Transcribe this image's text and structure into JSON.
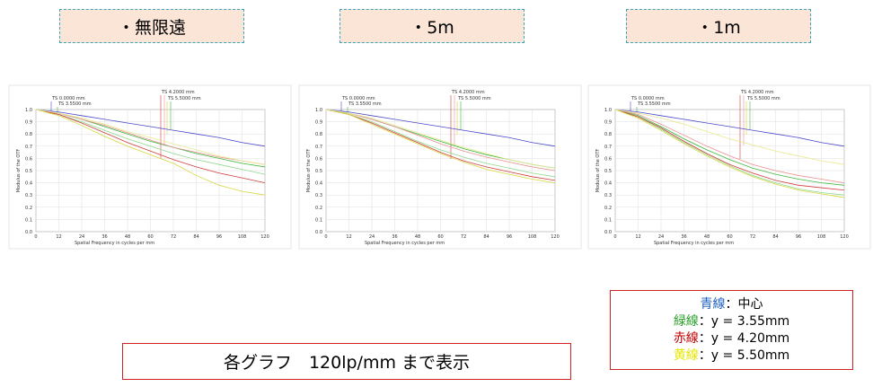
{
  "chart_data": [
    {
      "type": "line",
      "title": "・無限遠",
      "x_label": "Spatial Frequency in cycles per mm",
      "y_label": "Modulus of the OTF",
      "annotations": [
        "TS 0.0000 mm",
        "TS 3.5500 mm",
        "TS 4.2000 mm",
        "TS 5.5000 mm"
      ],
      "x": [
        0,
        12,
        24,
        36,
        48,
        60,
        72,
        84,
        96,
        108,
        120
      ],
      "xlim": [
        0,
        120
      ],
      "xticks": [
        0,
        12,
        24,
        36,
        48,
        60,
        72,
        84,
        96,
        108,
        120
      ],
      "ylim": [
        0,
        1
      ],
      "yticks": [
        {
          "value": 0,
          "label": "0.0"
        },
        {
          "value": 0.1,
          "label": "0.1"
        },
        {
          "value": 0.2,
          "label": "0.2"
        },
        {
          "value": 0.3,
          "label": "0.3"
        },
        {
          "value": 0.4,
          "label": "0.4"
        },
        {
          "value": 0.5,
          "label": "0.5"
        },
        {
          "value": 0.6,
          "label": "0.6"
        },
        {
          "value": 0.7,
          "label": "0.7"
        },
        {
          "value": 0.8,
          "label": "0.8"
        },
        {
          "value": 0.9,
          "label": "0.9"
        },
        {
          "value": 1,
          "label": "1.0"
        }
      ],
      "grid": true,
      "series": [
        {
          "color": "#4a4acb",
          "values": [
            1,
            0.98,
            0.95,
            0.92,
            0.89,
            0.86,
            0.83,
            0.8,
            0.77,
            0.73,
            0.7
          ]
        },
        {
          "color": "#3cb83c",
          "values": [
            1,
            0.97,
            0.92,
            0.86,
            0.8,
            0.74,
            0.69,
            0.64,
            0.6,
            0.56,
            0.53
          ]
        },
        {
          "color": "#8fd88f",
          "values": [
            1,
            0.96,
            0.9,
            0.83,
            0.76,
            0.7,
            0.64,
            0.59,
            0.55,
            0.51,
            0.47
          ]
        },
        {
          "color": "#d03c3c",
          "values": [
            1,
            0.96,
            0.89,
            0.81,
            0.73,
            0.66,
            0.59,
            0.53,
            0.48,
            0.44,
            0.4
          ]
        },
        {
          "color": "#e89090",
          "values": [
            1,
            0.97,
            0.92,
            0.87,
            0.81,
            0.75,
            0.69,
            0.65,
            0.61,
            0.58,
            0.55
          ]
        },
        {
          "color": "#d6d640",
          "values": [
            1,
            0.95,
            0.87,
            0.78,
            0.7,
            0.63,
            0.56,
            0.46,
            0.38,
            0.33,
            0.3
          ]
        },
        {
          "color": "#e8e890",
          "values": [
            1,
            0.97,
            0.93,
            0.88,
            0.82,
            0.77,
            0.72,
            0.67,
            0.62,
            0.58,
            0.55
          ]
        }
      ]
    },
    {
      "type": "line",
      "title": "・5m",
      "x_label": "Spatial Frequency in cycles per mm",
      "y_label": "Modulus of the OTF",
      "annotations": [
        "TS 0.0000 mm",
        "TS 3.5500 mm",
        "TS 4.2000 mm",
        "TS 5.5000 mm"
      ],
      "x": [
        0,
        12,
        24,
        36,
        48,
        60,
        72,
        84,
        96,
        108,
        120
      ],
      "xlim": [
        0,
        120
      ],
      "xticks": [
        0,
        12,
        24,
        36,
        48,
        60,
        72,
        84,
        96,
        108,
        120
      ],
      "ylim": [
        0,
        1
      ],
      "yticks": [
        {
          "value": 0,
          "label": "0.0"
        },
        {
          "value": 0.1,
          "label": "0.1"
        },
        {
          "value": 0.2,
          "label": "0.2"
        },
        {
          "value": 0.3,
          "label": "0.3"
        },
        {
          "value": 0.4,
          "label": "0.4"
        },
        {
          "value": 0.5,
          "label": "0.5"
        },
        {
          "value": 0.6,
          "label": "0.6"
        },
        {
          "value": 0.7,
          "label": "0.7"
        },
        {
          "value": 0.8,
          "label": "0.8"
        },
        {
          "value": 0.9,
          "label": "0.9"
        },
        {
          "value": 1,
          "label": "1.0"
        }
      ],
      "grid": true,
      "series": [
        {
          "color": "#4a4acb",
          "values": [
            1,
            0.98,
            0.95,
            0.92,
            0.89,
            0.86,
            0.83,
            0.8,
            0.77,
            0.73,
            0.7
          ]
        },
        {
          "color": "#3cb83c",
          "values": [
            1,
            0.97,
            0.92,
            0.86,
            0.8,
            0.74,
            0.68,
            0.63,
            0.59,
            0.55,
            0.52
          ]
        },
        {
          "color": "#8fd88f",
          "values": [
            1,
            0.96,
            0.9,
            0.82,
            0.74,
            0.67,
            0.61,
            0.56,
            0.52,
            0.48,
            0.45
          ]
        },
        {
          "color": "#d03c3c",
          "values": [
            1,
            0.96,
            0.89,
            0.81,
            0.73,
            0.65,
            0.58,
            0.53,
            0.49,
            0.45,
            0.42
          ]
        },
        {
          "color": "#e89090",
          "values": [
            1,
            0.97,
            0.92,
            0.86,
            0.79,
            0.72,
            0.66,
            0.61,
            0.57,
            0.53,
            0.5
          ]
        },
        {
          "color": "#d6d640",
          "values": [
            1,
            0.96,
            0.88,
            0.8,
            0.72,
            0.64,
            0.57,
            0.51,
            0.47,
            0.43,
            0.4
          ]
        },
        {
          "color": "#e8e890",
          "values": [
            1,
            0.97,
            0.93,
            0.87,
            0.81,
            0.75,
            0.69,
            0.64,
            0.59,
            0.55,
            0.52
          ]
        }
      ]
    },
    {
      "type": "line",
      "title": "・1m",
      "x_label": "Spatial Frequency in cycles per mm",
      "y_label": "Modulus of the OTF",
      "annotations": [
        "TS 0.0000 mm",
        "TS 3.5500 mm",
        "TS 4.2000 mm",
        "TS 5.5000 mm"
      ],
      "x": [
        0,
        12,
        24,
        36,
        48,
        60,
        72,
        84,
        96,
        108,
        120
      ],
      "xlim": [
        0,
        120
      ],
      "xticks": [
        0,
        12,
        24,
        36,
        48,
        60,
        72,
        84,
        96,
        108,
        120
      ],
      "ylim": [
        0,
        1
      ],
      "yticks": [
        {
          "value": 0,
          "label": "0.0"
        },
        {
          "value": 0.1,
          "label": "0.1"
        },
        {
          "value": 0.2,
          "label": "0.2"
        },
        {
          "value": 0.3,
          "label": "0.3"
        },
        {
          "value": 0.4,
          "label": "0.4"
        },
        {
          "value": 0.5,
          "label": "0.5"
        },
        {
          "value": 0.6,
          "label": "0.6"
        },
        {
          "value": 0.7,
          "label": "0.7"
        },
        {
          "value": 0.8,
          "label": "0.8"
        },
        {
          "value": 0.9,
          "label": "0.9"
        },
        {
          "value": 1,
          "label": "1.0"
        }
      ],
      "grid": true,
      "series": [
        {
          "color": "#4a4acb",
          "values": [
            1,
            0.98,
            0.95,
            0.92,
            0.89,
            0.86,
            0.83,
            0.8,
            0.77,
            0.73,
            0.7
          ]
        },
        {
          "color": "#3cb83c",
          "values": [
            1,
            0.95,
            0.86,
            0.76,
            0.67,
            0.59,
            0.52,
            0.47,
            0.43,
            0.4,
            0.38
          ]
        },
        {
          "color": "#8fd88f",
          "values": [
            1,
            0.94,
            0.84,
            0.73,
            0.63,
            0.54,
            0.46,
            0.4,
            0.35,
            0.32,
            0.3
          ]
        },
        {
          "color": "#d03c3c",
          "values": [
            1,
            0.94,
            0.85,
            0.74,
            0.64,
            0.55,
            0.48,
            0.42,
            0.38,
            0.36,
            0.34
          ]
        },
        {
          "color": "#e89090",
          "values": [
            1,
            0.96,
            0.88,
            0.79,
            0.7,
            0.62,
            0.55,
            0.5,
            0.46,
            0.43,
            0.4
          ]
        },
        {
          "color": "#d6d640",
          "values": [
            1,
            0.93,
            0.83,
            0.72,
            0.62,
            0.53,
            0.45,
            0.39,
            0.34,
            0.31,
            0.28
          ]
        },
        {
          "color": "#e8e890",
          "values": [
            1,
            0.97,
            0.93,
            0.88,
            0.82,
            0.76,
            0.71,
            0.66,
            0.62,
            0.58,
            0.55
          ]
        }
      ]
    }
  ],
  "note": "各グラフ　120lp/mm まで表示",
  "legend": [
    {
      "name": "青線",
      "text": "：中心",
      "color": "#1f5fbf"
    },
    {
      "name": "緑線",
      "text": "：y = 3.55mm",
      "color": "#2ca02c"
    },
    {
      "name": "赤線",
      "text": "：y = 4.20mm",
      "color": "#c00000"
    },
    {
      "name": "黄線",
      "text": "：y = 5.50mm",
      "color": "#e6e600"
    }
  ]
}
